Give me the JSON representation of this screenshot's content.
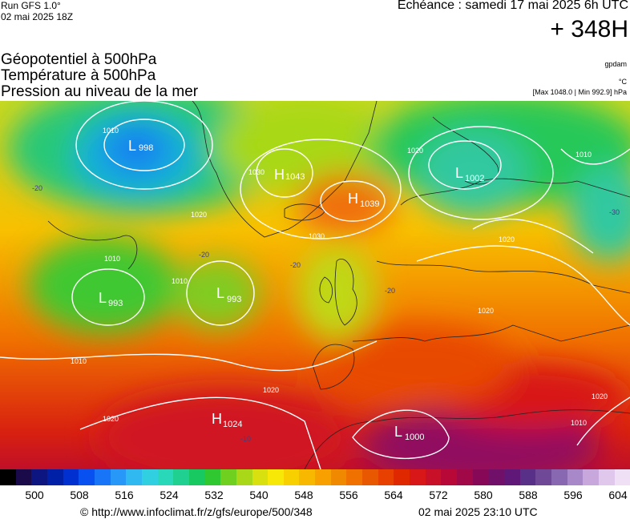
{
  "header": {
    "model_run": "Run GFS 1.0°",
    "run_date": "02 mai 2025 18Z",
    "forecast_time": "Echéance : samedi 17 mai 2025 6h UTC",
    "horizon": "+ 348H"
  },
  "titles": {
    "line1": "Géopotentiel à 500hPa",
    "line2": "Température à 500hPa",
    "line3": "Pression au niveau de la mer"
  },
  "legend_info": {
    "source_tag": "gpdam",
    "temp_unit": "°C",
    "pressure_range": "[Max 1048.0 | Min 992.9] hPa"
  },
  "map": {
    "pressure_centers": [
      {
        "type": "L",
        "value": "998"
      },
      {
        "type": "H",
        "value": "1043"
      },
      {
        "type": "H",
        "value": "1039"
      },
      {
        "type": "L",
        "value": "1002"
      },
      {
        "type": "L",
        "value": "993"
      },
      {
        "type": "L",
        "value": "993"
      },
      {
        "type": "H",
        "value": "1024"
      },
      {
        "type": "L",
        "value": "1000"
      }
    ],
    "isobar_labels": [
      "1010",
      "1010",
      "1010",
      "1010",
      "1010",
      "1020",
      "1020",
      "1020",
      "1020",
      "1020",
      "1020",
      "1020",
      "1030",
      "1030",
      "1010"
    ],
    "isotherm_labels": [
      "-20",
      "-20",
      "-20",
      "-20",
      "-30",
      "-10"
    ]
  },
  "scale": {
    "ticks": [
      "500",
      "508",
      "516",
      "524",
      "532",
      "540",
      "548",
      "556",
      "564",
      "572",
      "580",
      "588",
      "596",
      "604"
    ],
    "colors": [
      "#000000",
      "#1a0a4a",
      "#0c1580",
      "#0020a8",
      "#0030d0",
      "#0850f0",
      "#1875f8",
      "#2898f8",
      "#30b8f0",
      "#30d0e0",
      "#28d8b8",
      "#20d090",
      "#18c860",
      "#30c830",
      "#70d020",
      "#a8d818",
      "#d8e010",
      "#f8e808",
      "#f8d000",
      "#f8b800",
      "#f8a000",
      "#f08800",
      "#f07000",
      "#e85800",
      "#e84000",
      "#e02800",
      "#d81818",
      "#c81028",
      "#b80838",
      "#a00848",
      "#880858",
      "#701068",
      "#601878",
      "#583088",
      "#704898",
      "#8868b0",
      "#a888c8",
      "#c8a8dc",
      "#e0c8ec",
      "#f0e0f6"
    ]
  },
  "footer": {
    "url": "© http://www.infoclimat.fr/z/gfs/europe/500/348",
    "timestamp": "02 mai 2025 23:10 UTC"
  }
}
